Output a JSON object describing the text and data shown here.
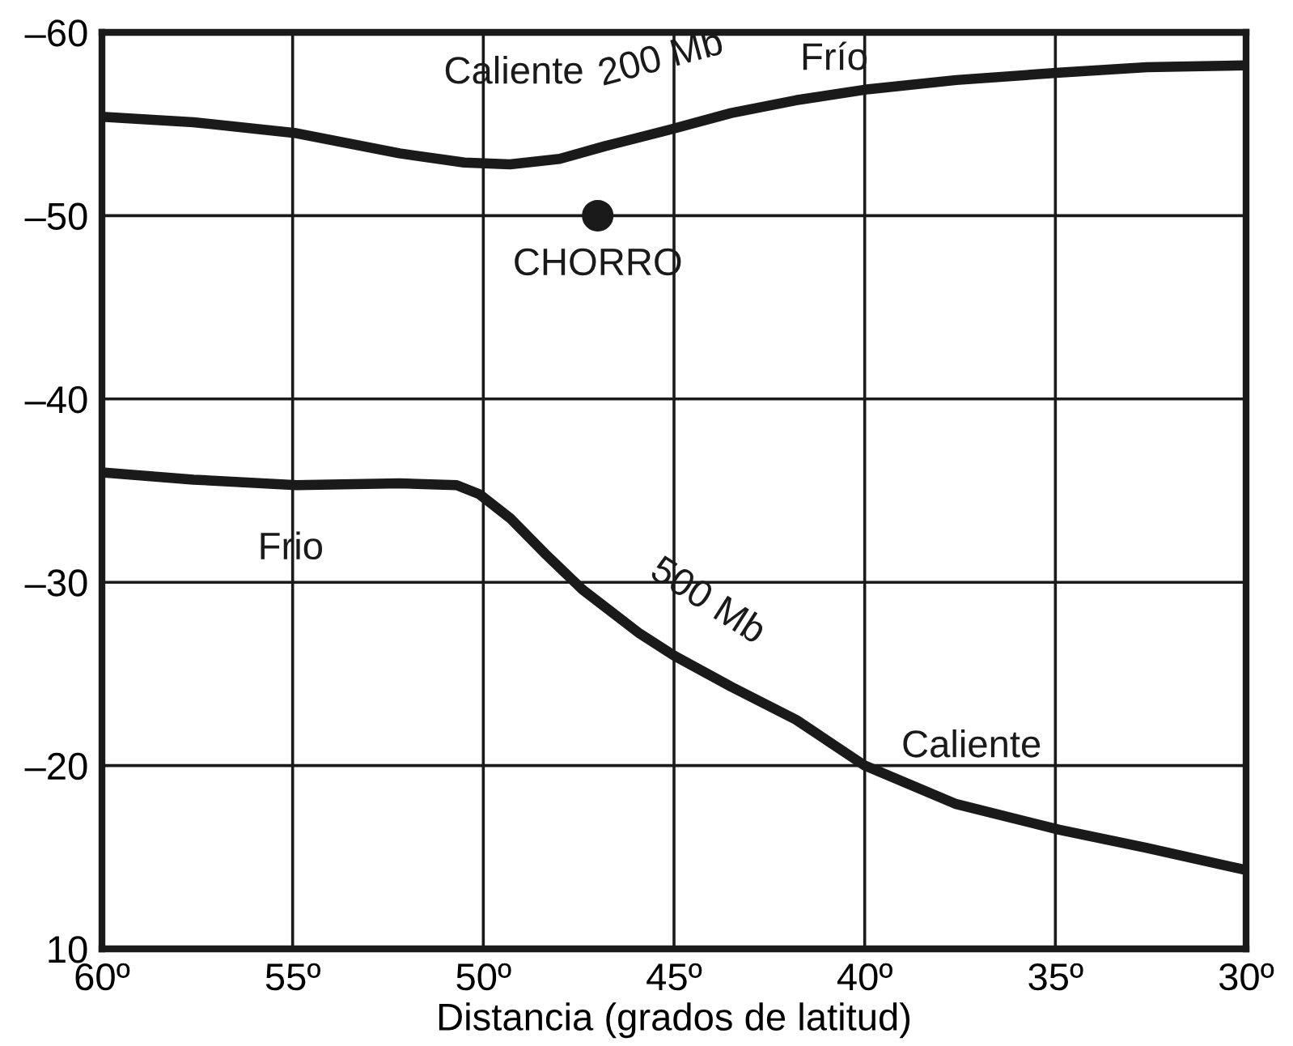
{
  "chart_data": {
    "type": "line",
    "xlabel": "Distancia (grados de latitud)",
    "xlim": [
      60,
      30
    ],
    "xticks": [
      {
        "value": 60,
        "label": "60º"
      },
      {
        "value": 55,
        "label": "55º"
      },
      {
        "value": 50,
        "label": "50º"
      },
      {
        "value": 45,
        "label": "45º"
      },
      {
        "value": 40,
        "label": "40º"
      },
      {
        "value": 35,
        "label": "35º"
      },
      {
        "value": 30,
        "label": "30º"
      }
    ],
    "ylim": [
      -10,
      -60
    ],
    "yticks": [
      {
        "value": -60,
        "label": "–60"
      },
      {
        "value": -50,
        "label": "–50"
      },
      {
        "value": -40,
        "label": "–40"
      },
      {
        "value": -30,
        "label": "–30"
      },
      {
        "value": -20,
        "label": "–20"
      },
      {
        "value": -10,
        "label": "10"
      }
    ],
    "grid": true,
    "series": [
      {
        "name": "200 Mb",
        "color": "#1a1a1a",
        "x": [
          60,
          57.6,
          54.9,
          52.2,
          50.5,
          49.3,
          48.0,
          46.8,
          45.1,
          43.5,
          41.8,
          39.9,
          37.6,
          34.9,
          32.6,
          30
        ],
        "values": [
          -55.4,
          -55.1,
          -54.5,
          -53.4,
          -52.9,
          -52.8,
          -53.1,
          -53.8,
          -54.7,
          -55.6,
          -56.3,
          -56.9,
          -57.4,
          -57.8,
          -58.1,
          -58.2
        ]
      },
      {
        "name": "500 Mb",
        "color": "#1a1a1a",
        "x": [
          60,
          57.6,
          54.9,
          52.2,
          50.7,
          50.1,
          49.3,
          48.4,
          47.4,
          45.9,
          45.0,
          43.5,
          41.8,
          40.0,
          37.6,
          34.9,
          32.6,
          30
        ],
        "values": [
          -36.0,
          -35.6,
          -35.3,
          -35.4,
          -35.3,
          -34.8,
          -33.5,
          -31.6,
          -29.6,
          -27.2,
          -26.0,
          -24.3,
          -22.5,
          -20.0,
          -17.9,
          -16.5,
          -15.5,
          -14.3
        ]
      },
      {
        "type": "scatter",
        "color": "#1a1a1a",
        "x": [
          47.0
        ],
        "values": [
          -50
        ],
        "marker": "circle"
      }
    ],
    "line_style": "solid",
    "annotations": [
      {
        "text": "CHORRO",
        "x": 47.0,
        "y": -50
      },
      "Caliente",
      "Frío",
      "Frio",
      "Caliente"
    ]
  }
}
